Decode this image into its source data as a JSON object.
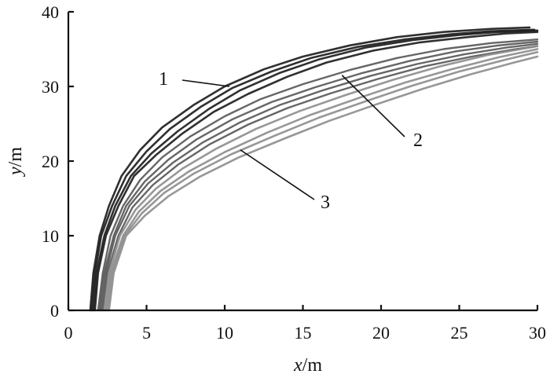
{
  "chart_data": {
    "type": "line",
    "title": "",
    "xlabel": {
      "var": "x",
      "unit": "/m"
    },
    "ylabel": {
      "var": "y",
      "unit": "/m"
    },
    "xlim": [
      0,
      30
    ],
    "ylim": [
      0,
      40
    ],
    "xticks": [
      0,
      5,
      10,
      15,
      20,
      25,
      30
    ],
    "yticks": [
      0,
      10,
      20,
      30,
      40
    ],
    "xtick_labels": [
      "0",
      "5",
      "10",
      "15",
      "20",
      "25",
      "30"
    ],
    "ytick_labels": [
      "0",
      "10",
      "20",
      "30",
      "40"
    ],
    "grid": false,
    "legend": "none",
    "colors": {
      "group1": "#1a1a1a",
      "group2": "#555555",
      "group3": "#8c8c8c",
      "axis": "#111111"
    },
    "callouts": [
      {
        "label": "1",
        "group": 1,
        "target": [
          10.3,
          30.0
        ]
      },
      {
        "label": "2",
        "group": 2,
        "target": [
          17.5,
          31.5
        ]
      },
      {
        "label": "3",
        "group": 3,
        "target": [
          11.0,
          21.5
        ]
      }
    ],
    "series": [
      {
        "group": 1,
        "x": [
          1.4,
          1.6,
          2.0,
          2.6,
          3.4,
          4.6,
          6.0,
          8.0,
          10.0,
          12.5,
          15.0,
          18.0,
          21.0,
          24.0,
          27.0,
          29.5
        ],
        "y": [
          0,
          5,
          10,
          14,
          18,
          21.5,
          24.5,
          27.5,
          30.0,
          32.3,
          34.0,
          35.5,
          36.6,
          37.3,
          37.7,
          37.9
        ]
      },
      {
        "group": 1,
        "x": [
          1.5,
          1.7,
          2.1,
          2.8,
          3.7,
          5.0,
          6.5,
          8.5,
          10.5,
          13.0,
          15.5,
          18.5,
          21.5,
          24.5,
          27.0,
          29.8
        ],
        "y": [
          0,
          5,
          10,
          14,
          18,
          21.3,
          24.3,
          27.3,
          29.8,
          32.0,
          33.8,
          35.3,
          36.3,
          37.0,
          37.4,
          37.6
        ]
      },
      {
        "group": 1,
        "x": [
          1.6,
          1.8,
          2.3,
          3.0,
          4.0,
          5.3,
          7.0,
          9.0,
          11.0,
          13.5,
          16.0,
          19.0,
          22.0,
          25.0,
          27.5,
          30.0
        ],
        "y": [
          0,
          5,
          10,
          14,
          18,
          21.0,
          24.0,
          27.0,
          29.5,
          31.8,
          33.6,
          35.2,
          36.2,
          36.9,
          37.3,
          37.5
        ]
      },
      {
        "group": 1,
        "x": [
          1.7,
          1.9,
          2.4,
          3.2,
          4.2,
          5.6,
          7.3,
          9.3,
          11.5,
          14.0,
          16.5,
          19.5,
          22.5,
          25.5,
          28.0,
          30.0
        ],
        "y": [
          0,
          5,
          10,
          14,
          18,
          20.8,
          23.7,
          26.6,
          29.0,
          31.3,
          33.2,
          34.8,
          35.9,
          36.6,
          37.1,
          37.3
        ]
      },
      {
        "group": 2,
        "x": [
          1.9,
          2.2,
          2.7,
          3.5,
          4.6,
          6.0,
          7.8,
          10.0,
          12.3,
          15.0,
          18.0,
          21.0,
          24.0,
          27.0,
          30.0
        ],
        "y": [
          0,
          5,
          10,
          14,
          17.5,
          20.5,
          23.3,
          26.0,
          28.3,
          30.3,
          32.2,
          33.8,
          35.0,
          35.8,
          36.3
        ]
      },
      {
        "group": 2,
        "x": [
          2.0,
          2.3,
          2.9,
          3.7,
          4.9,
          6.4,
          8.2,
          10.5,
          13.0,
          15.8,
          18.8,
          21.8,
          24.8,
          27.5,
          30.0
        ],
        "y": [
          0,
          5,
          10,
          14,
          17.3,
          20.2,
          22.9,
          25.6,
          27.9,
          29.9,
          31.8,
          33.4,
          34.7,
          35.5,
          36.0
        ]
      },
      {
        "group": 2,
        "x": [
          2.1,
          2.4,
          3.0,
          3.9,
          5.1,
          6.7,
          8.6,
          11.0,
          13.5,
          16.3,
          19.3,
          22.3,
          25.3,
          28.0,
          30.0
        ],
        "y": [
          0,
          5,
          10,
          14,
          17.0,
          19.8,
          22.5,
          25.2,
          27.5,
          29.5,
          31.4,
          33.0,
          34.3,
          35.2,
          35.7
        ]
      },
      {
        "group": 2,
        "x": [
          2.2,
          2.5,
          3.2,
          4.1,
          5.4,
          7.0,
          9.0,
          11.5,
          14.0,
          16.8,
          19.8,
          22.8,
          25.8,
          28.3,
          30.0
        ],
        "y": [
          0,
          5,
          10,
          13.8,
          16.8,
          19.5,
          22.2,
          24.9,
          27.1,
          29.1,
          31.0,
          32.7,
          34.0,
          34.9,
          35.4
        ]
      },
      {
        "group": 3,
        "x": [
          2.3,
          2.6,
          3.3,
          4.3,
          5.6,
          7.3,
          9.5,
          12.0,
          14.8,
          17.8,
          20.8,
          23.8,
          26.8,
          30.0
        ],
        "y": [
          0,
          5,
          10,
          13.5,
          16.3,
          19.0,
          21.7,
          24.3,
          26.7,
          28.9,
          30.9,
          32.7,
          34.2,
          35.4
        ]
      },
      {
        "group": 3,
        "x": [
          2.4,
          2.7,
          3.5,
          4.5,
          5.9,
          7.7,
          10.0,
          12.7,
          15.5,
          18.5,
          21.5,
          24.5,
          27.5,
          30.0
        ],
        "y": [
          0,
          5,
          10,
          13.2,
          16.0,
          18.6,
          21.2,
          23.8,
          26.2,
          28.4,
          30.5,
          32.3,
          33.9,
          35.0
        ]
      },
      {
        "group": 3,
        "x": [
          2.5,
          2.8,
          3.6,
          4.7,
          6.1,
          8.0,
          10.4,
          13.2,
          16.0,
          19.0,
          22.0,
          25.0,
          28.0,
          30.0
        ],
        "y": [
          0,
          5,
          10,
          13.0,
          15.7,
          18.3,
          20.9,
          23.4,
          25.8,
          28.0,
          30.1,
          32.0,
          33.6,
          34.6
        ]
      },
      {
        "group": 3,
        "x": [
          2.6,
          2.9,
          3.7,
          4.9,
          6.4,
          8.4,
          10.9,
          13.8,
          16.7,
          19.7,
          22.7,
          25.7,
          28.5,
          30.0
        ],
        "y": [
          0,
          5,
          10,
          12.7,
          15.3,
          17.9,
          20.5,
          23.0,
          25.4,
          27.6,
          29.7,
          31.6,
          33.2,
          34.0
        ]
      }
    ]
  }
}
